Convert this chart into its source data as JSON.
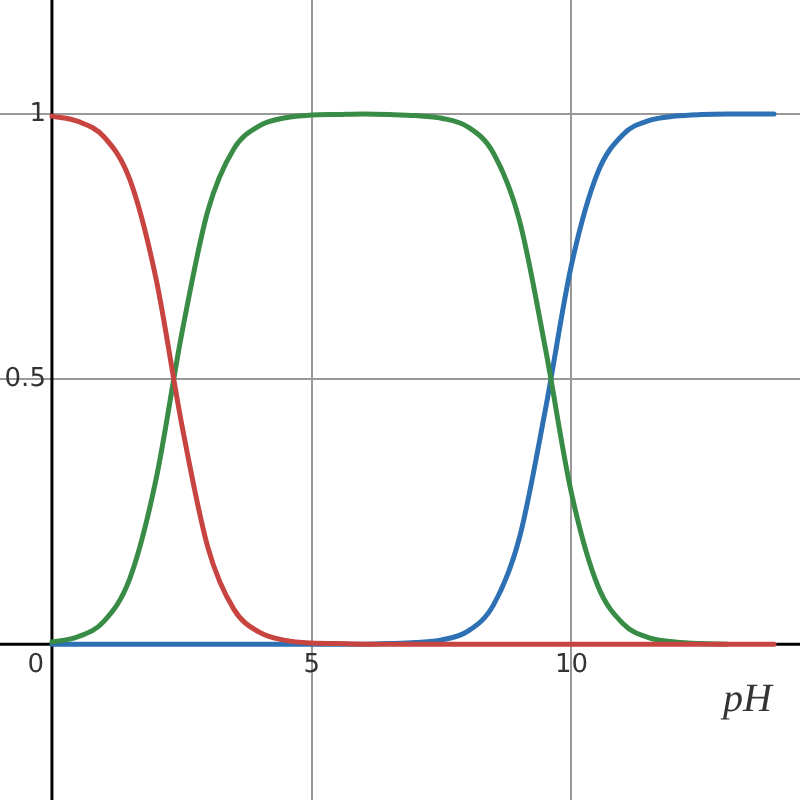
{
  "chart_data": {
    "type": "line",
    "xlabel": "pH",
    "xlim": [
      -1.0,
      14.4
    ],
    "ylim": [
      -0.294,
      1.215
    ],
    "xticks": [
      0,
      5,
      10
    ],
    "yticks": [
      0.5,
      1
    ],
    "grid": true,
    "legend": false,
    "marker": "none",
    "line_style": "solid",
    "x": [
      0,
      0.5,
      1,
      1.5,
      2,
      2.5,
      3,
      3.5,
      4,
      4.5,
      5,
      5.5,
      6,
      6.5,
      7,
      7.5,
      8,
      8.5,
      9,
      9.5,
      10,
      10.5,
      11,
      11.5,
      12,
      12.5,
      13,
      13.5,
      13.9
    ],
    "series": [
      {
        "color": "#c74440",
        "values": [
          0.996,
          0.986,
          0.957,
          0.876,
          0.691,
          0.414,
          0.183,
          0.066,
          0.022,
          0.007,
          0.002,
          0.001,
          0,
          0,
          0,
          0,
          0,
          0,
          0,
          0,
          0,
          0,
          0,
          0,
          0,
          0,
          0,
          0,
          0
        ]
      },
      {
        "color": "#388c46",
        "values": [
          0.004,
          0.014,
          0.043,
          0.124,
          0.309,
          0.586,
          0.817,
          0.934,
          0.978,
          0.993,
          0.998,
          0.999,
          1,
          0.999,
          0.997,
          0.992,
          0.976,
          0.926,
          0.799,
          0.557,
          0.285,
          0.112,
          0.038,
          0.012,
          0.004,
          0.001,
          0,
          null,
          null
        ]
      },
      {
        "color": "#2d70b3",
        "values": [
          0,
          0,
          0,
          0,
          0,
          0,
          0,
          0,
          0,
          0,
          0,
          0,
          0,
          0.001,
          0.003,
          0.008,
          0.024,
          0.074,
          0.201,
          0.443,
          0.715,
          0.888,
          0.962,
          0.988,
          0.996,
          0.999,
          1,
          1,
          1
        ]
      }
    ]
  }
}
